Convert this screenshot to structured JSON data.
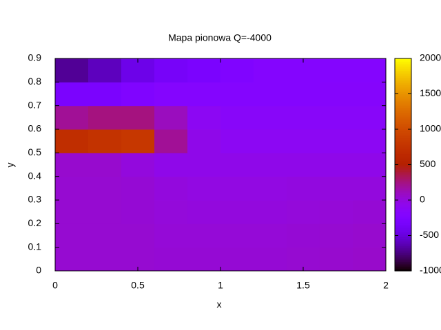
{
  "chart_data": {
    "type": "heatmap",
    "title": "Mapa pionowa Q=-4000",
    "x_label": "x",
    "y_label": "y",
    "x": [
      0.1,
      0.3,
      0.5,
      0.7,
      0.9,
      1.1,
      1.3,
      1.5,
      1.7,
      1.9
    ],
    "y": [
      0.05,
      0.15,
      0.25,
      0.35,
      0.45,
      0.55,
      0.65,
      0.75,
      0.85
    ],
    "values": [
      [
        40,
        40,
        40,
        30,
        30,
        30,
        30,
        40,
        50,
        60
      ],
      [
        40,
        40,
        40,
        20,
        20,
        20,
        20,
        30,
        40,
        50
      ],
      [
        40,
        40,
        30,
        10,
        0,
        0,
        0,
        10,
        20,
        30
      ],
      [
        40,
        40,
        30,
        0,
        -20,
        -20,
        -20,
        -10,
        0,
        0
      ],
      [
        50,
        50,
        0,
        -50,
        -50,
        -50,
        -50,
        -50,
        -50,
        -50
      ],
      [
        700,
        750,
        800,
        200,
        -50,
        -100,
        -100,
        -100,
        -100,
        -100
      ],
      [
        200,
        250,
        250,
        100,
        -100,
        -150,
        -150,
        -150,
        -150,
        -150
      ],
      [
        -300,
        -300,
        -250,
        -200,
        -200,
        -200,
        -200,
        -200,
        -180,
        -180
      ],
      [
        -700,
        -600,
        -450,
        -350,
        -300,
        -250,
        -200,
        -200,
        -200,
        -200
      ]
    ],
    "xlim": [
      0,
      2
    ],
    "xticks": [
      0,
      0.5,
      1,
      1.5,
      2
    ],
    "ylim": [
      0,
      0.9
    ],
    "yticks": [
      0,
      0.1,
      0.2,
      0.3,
      0.4,
      0.5,
      0.6,
      0.7,
      0.8,
      0.9
    ],
    "cblim": [
      -1000,
      2000
    ],
    "cbticks": [
      -1000,
      -500,
      0,
      500,
      1000,
      1500,
      2000
    ]
  }
}
